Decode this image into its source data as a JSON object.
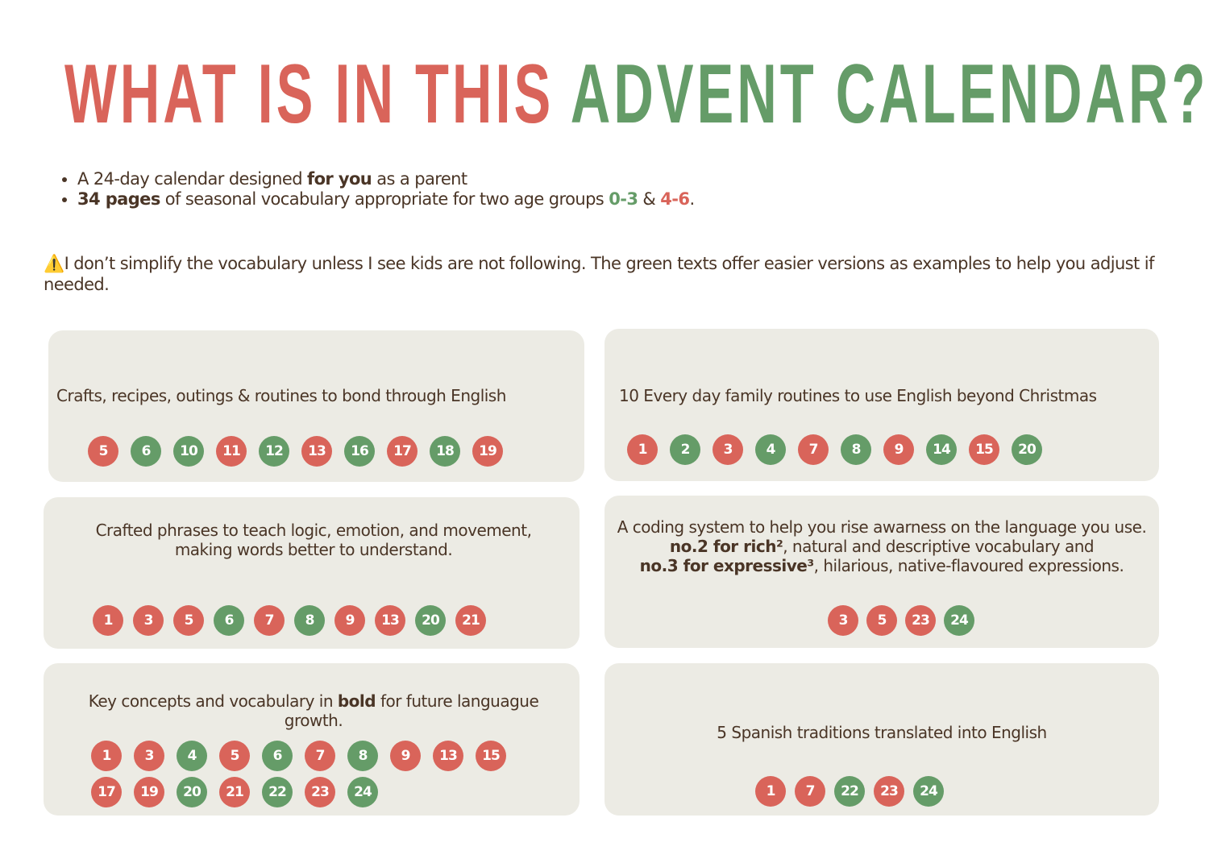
{
  "title": {
    "part1": "WHAT IS IN THIS",
    "part2": "ADVENT CALENDAR?"
  },
  "colors": {
    "red": "#d9645a",
    "green": "#659c68",
    "text": "#4a3526",
    "box": "#ecebe4"
  },
  "bullets": [
    [
      {
        "t": "A 24-day calendar designed "
      },
      {
        "t": "for you",
        "s": "b"
      },
      {
        "t": " as a parent"
      }
    ],
    [
      {
        "t": "34 pages",
        "s": "b"
      },
      {
        "t": " of seasonal vocabulary appropriate for two age groups "
      },
      {
        "t": "0-3",
        "s": "green"
      },
      {
        "t": " & "
      },
      {
        "t": "4-6",
        "s": "red"
      },
      {
        "t": "."
      }
    ]
  ],
  "warning": {
    "icon": "warning-icon",
    "symbol": "⚠️",
    "text": "I don’t simplify the vocabulary unless I see kids are not following. The green texts offer easier versions as examples to help you adjust if needed."
  },
  "boxes": [
    {
      "text": [
        [
          {
            "t": "Crafts, recipes, outings & routines to bond through English"
          }
        ]
      ],
      "days": [
        {
          "n": "5",
          "c": "r"
        },
        {
          "n": "6",
          "c": "g"
        },
        {
          "n": "10",
          "c": "g"
        },
        {
          "n": "11",
          "c": "r"
        },
        {
          "n": "12",
          "c": "g"
        },
        {
          "n": "13",
          "c": "r"
        },
        {
          "n": "16",
          "c": "g"
        },
        {
          "n": "17",
          "c": "r"
        },
        {
          "n": "18",
          "c": "g"
        },
        {
          "n": "19",
          "c": "r"
        }
      ]
    },
    {
      "text": [
        [
          {
            "t": "10 Every day family routines to use English beyond Christmas"
          }
        ]
      ],
      "days": [
        {
          "n": "1",
          "c": "r"
        },
        {
          "n": "2",
          "c": "g"
        },
        {
          "n": "3",
          "c": "r"
        },
        {
          "n": "4",
          "c": "g"
        },
        {
          "n": "7",
          "c": "r"
        },
        {
          "n": "8",
          "c": "g"
        },
        {
          "n": "9",
          "c": "r"
        },
        {
          "n": "14",
          "c": "g"
        },
        {
          "n": "15",
          "c": "r"
        },
        {
          "n": "20",
          "c": "g"
        }
      ]
    },
    {
      "text": [
        [
          {
            "t": "Crafted phrases to teach logic, emotion, and movement, making words better to understand."
          }
        ]
      ],
      "days": [
        {
          "n": "1",
          "c": "r"
        },
        {
          "n": "3",
          "c": "r"
        },
        {
          "n": "5",
          "c": "r"
        },
        {
          "n": "6",
          "c": "g"
        },
        {
          "n": "7",
          "c": "r"
        },
        {
          "n": "8",
          "c": "g"
        },
        {
          "n": "9",
          "c": "r"
        },
        {
          "n": "13",
          "c": "r"
        },
        {
          "n": "20",
          "c": "g"
        },
        {
          "n": "21",
          "c": "r"
        }
      ]
    },
    {
      "text": [
        [
          {
            "t": "A coding system to help you rise awarness on the language you use."
          }
        ],
        [
          {
            "t": "no.2 for rich²",
            "s": "b"
          },
          {
            "t": ", natural and descriptive vocabulary  and"
          }
        ],
        [
          {
            "t": "no.3 for expressive³",
            "s": "b"
          },
          {
            "t": ", hilarious, native-flavoured expressions."
          }
        ]
      ],
      "days": [
        {
          "n": "3",
          "c": "r"
        },
        {
          "n": "5",
          "c": "r"
        },
        {
          "n": "23",
          "c": "r"
        },
        {
          "n": "24",
          "c": "g"
        }
      ]
    },
    {
      "text": [
        [
          {
            "t": "Key concepts and vocabulary in "
          },
          {
            "t": "bold",
            "s": "b"
          },
          {
            "t": " for future languague growth."
          }
        ]
      ],
      "days": [
        {
          "n": "1",
          "c": "r"
        },
        {
          "n": "3",
          "c": "r"
        },
        {
          "n": "4",
          "c": "g"
        },
        {
          "n": "5",
          "c": "r"
        },
        {
          "n": "6",
          "c": "g"
        },
        {
          "n": "7",
          "c": "r"
        },
        {
          "n": "8",
          "c": "g"
        },
        {
          "n": "9",
          "c": "r"
        },
        {
          "n": "13",
          "c": "r"
        },
        {
          "n": "15",
          "c": "r"
        },
        {
          "n": "17",
          "c": "r"
        },
        {
          "n": "19",
          "c": "r"
        },
        {
          "n": "20",
          "c": "g"
        },
        {
          "n": "21",
          "c": "r"
        },
        {
          "n": "22",
          "c": "g"
        },
        {
          "n": "23",
          "c": "r"
        },
        {
          "n": "24",
          "c": "g"
        }
      ]
    },
    {
      "text": [
        [
          {
            "t": "5 Spanish traditions translated into English"
          }
        ]
      ],
      "days": [
        {
          "n": "1",
          "c": "r"
        },
        {
          "n": "7",
          "c": "r"
        },
        {
          "n": "22",
          "c": "g"
        },
        {
          "n": "23",
          "c": "r"
        },
        {
          "n": "24",
          "c": "g"
        }
      ]
    }
  ]
}
